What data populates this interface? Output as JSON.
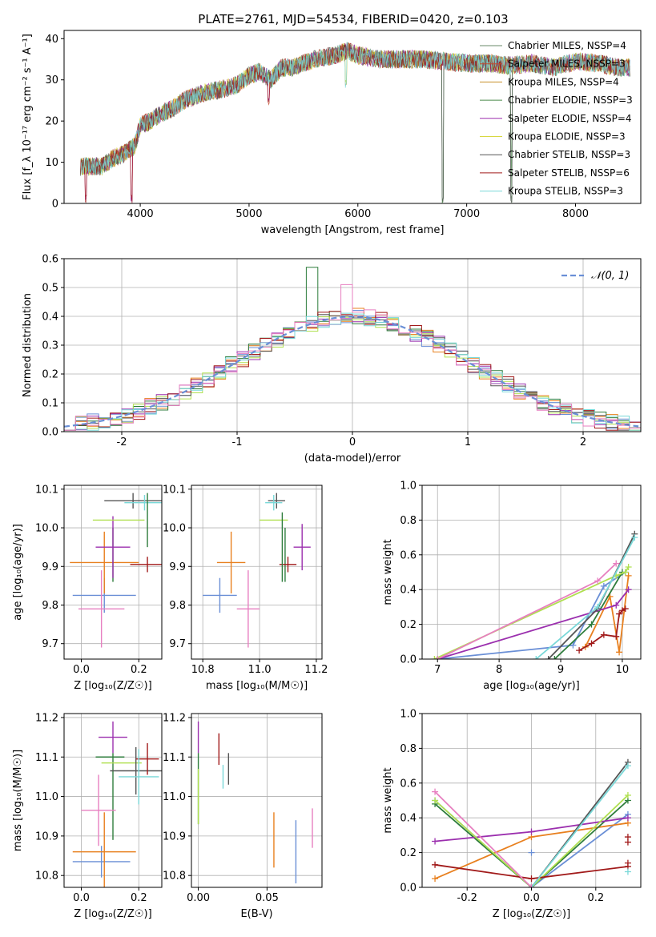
{
  "figure_title": "PLATE=2761, MJD=54534, FIBERID=0420, z=0.103",
  "series_colors": [
    "#6a8fd6",
    "#e8801f",
    "#2e7d3c",
    "#9b2fae",
    "#b0e050",
    "#555555",
    "#a11a1a",
    "#79d8d8",
    "#e77fc0"
  ],
  "chart_data": [
    {
      "type": "line",
      "id": "spectrum",
      "title": "",
      "xlabel": "wavelength [Angstrom, rest frame]",
      "ylabel": "Flux [f_λ 10⁻¹⁷ erg cm⁻² s⁻¹ A⁻¹]",
      "xlim": [
        3300,
        8600
      ],
      "ylim": [
        0,
        42
      ],
      "xticks": [
        4000,
        5000,
        6000,
        7000,
        8000
      ],
      "yticks": [
        0,
        10,
        20,
        30,
        40
      ],
      "grid": false,
      "legend": "upper-right",
      "series": [
        {
          "name": "Chabrier MILES, N_SSP=4",
          "color": "#6a8a6a"
        },
        {
          "name": "Salpeter MILES, N_SSP=3",
          "color": "#c24a2a"
        },
        {
          "name": "Kroupa MILES, N_SSP=4",
          "color": "#c8902a"
        },
        {
          "name": "Chabrier ELODIE, N_SSP=3",
          "color": "#4a8a4a"
        },
        {
          "name": "Salpeter ELODIE, N_SSP=4",
          "color": "#9b2fae"
        },
        {
          "name": "Kroupa ELODIE, N_SSP=3",
          "color": "#d8d840"
        },
        {
          "name": "Chabrier STELIB, N_SSP=3",
          "color": "#555555"
        },
        {
          "name": "Salpeter STELIB, N_SSP=6",
          "color": "#a11a1a"
        },
        {
          "name": "Kroupa STELIB, N_SSP=3",
          "color": "#79d8d8"
        }
      ],
      "continuum": {
        "x": [
          3450,
          3550,
          3650,
          3750,
          3850,
          3950,
          4000,
          4100,
          4200,
          4300,
          4400,
          4500,
          4600,
          4700,
          4800,
          4900,
          5000,
          5100,
          5200,
          5300,
          5400,
          5500,
          5600,
          5700,
          5800,
          5900,
          6000,
          6200,
          6400,
          6600,
          6800,
          7000,
          7200,
          7400,
          7600,
          7800,
          8000,
          8200,
          8400,
          8500
        ],
        "y": [
          9,
          9,
          9,
          11,
          12,
          14,
          19,
          20,
          22,
          23,
          25,
          26,
          27,
          27.5,
          28,
          29,
          31,
          32,
          30,
          33,
          33,
          34,
          35,
          35.5,
          36,
          37,
          36,
          35,
          35,
          35,
          34.5,
          34,
          34,
          33.5,
          34,
          33,
          34.5,
          34,
          33,
          33
        ]
      },
      "dips": [
        {
          "x": 3500,
          "y_min": 0
        },
        {
          "x": 3920,
          "y_min": 0
        },
        {
          "x": 5180,
          "y_min": 24
        },
        {
          "x": 5890,
          "y_min": 28
        },
        {
          "x": 6780,
          "y_min": 0
        },
        {
          "x": 7410,
          "y_min": 0
        }
      ]
    },
    {
      "type": "area",
      "id": "residuals",
      "title": "",
      "xlabel": "(data-model)/error",
      "ylabel": "Normed distribution",
      "xlim": [
        -2.5,
        2.5
      ],
      "ylim": [
        0,
        0.6
      ],
      "xticks": [
        -2,
        -1,
        0,
        1,
        2
      ],
      "yticks": [
        0.0,
        0.1,
        0.2,
        0.3,
        0.4,
        0.5,
        0.6
      ],
      "grid": true,
      "legend": "upper-right",
      "gaussian_label": "𝒩(0, 1)",
      "gaussian_color": "#6a8fd6",
      "bin_width": 0.1
    },
    {
      "type": "scatter",
      "id": "z-age",
      "xlabel": "Z [log₁₀(Z/Z☉)]",
      "ylabel": "age  [log₁₀(age/yr)]",
      "xlim": [
        -0.06,
        0.28
      ],
      "ylim": [
        9.66,
        10.11
      ],
      "xticks": [
        0.0,
        0.2
      ],
      "yticks": [
        9.7,
        9.8,
        9.9,
        10.0,
        10.1
      ],
      "grid": true,
      "points": [
        {
          "x": 0.08,
          "y": 9.825,
          "xerr": 0.11,
          "yerr": 0.045,
          "color": "#6a8fd6"
        },
        {
          "x": 0.08,
          "y": 9.91,
          "xerr": 0.12,
          "yerr": 0.08,
          "color": "#e8801f"
        },
        {
          "x": 0.11,
          "y": 9.93,
          "xerr": 0.0,
          "yerr": 0.07,
          "color": "#2e7d3c"
        },
        {
          "x": 0.11,
          "y": 9.95,
          "xerr": 0.06,
          "yerr": 0.08,
          "color": "#9b2fae"
        },
        {
          "x": 0.13,
          "y": 10.02,
          "xerr": 0.09,
          "yerr": 0.0,
          "color": "#b0e050"
        },
        {
          "x": 0.18,
          "y": 10.07,
          "xerr": 0.1,
          "yerr": 0.02,
          "color": "#555555"
        },
        {
          "x": 0.23,
          "y": 9.905,
          "xerr": 0.06,
          "yerr": 0.02,
          "color": "#a11a1a"
        },
        {
          "x": 0.22,
          "y": 10.065,
          "xerr": 0.07,
          "yerr": 0.02,
          "color": "#79d8d8"
        },
        {
          "x": 0.07,
          "y": 9.79,
          "xerr": 0.08,
          "yerr": 0.1,
          "color": "#e77fc0"
        },
        {
          "x": 0.23,
          "y": 10.02,
          "xerr": 0.0,
          "yerr": 0.07,
          "color": "#2e7d3c"
        }
      ]
    },
    {
      "type": "scatter",
      "id": "mass-age",
      "xlabel": "mass [log₁₀(M/M☉)]",
      "ylabel": "",
      "xlim": [
        10.76,
        11.22
      ],
      "ylim": [
        9.66,
        10.11
      ],
      "xticks": [
        10.8,
        11.0,
        11.2
      ],
      "yticks": [
        9.7,
        9.8,
        9.9,
        10.0,
        10.1
      ],
      "grid": true,
      "points": [
        {
          "x": 10.86,
          "y": 9.825,
          "xerr": 0.06,
          "yerr": 0.045,
          "color": "#6a8fd6"
        },
        {
          "x": 10.9,
          "y": 9.91,
          "xerr": 0.05,
          "yerr": 0.08,
          "color": "#e8801f"
        },
        {
          "x": 11.09,
          "y": 9.93,
          "xerr": 0.0,
          "yerr": 0.07,
          "color": "#2e7d3c"
        },
        {
          "x": 11.15,
          "y": 9.95,
          "xerr": 0.03,
          "yerr": 0.06,
          "color": "#9b2fae"
        },
        {
          "x": 11.05,
          "y": 10.02,
          "xerr": 0.05,
          "yerr": 0.0,
          "color": "#b0e050"
        },
        {
          "x": 11.06,
          "y": 10.07,
          "xerr": 0.03,
          "yerr": 0.02,
          "color": "#555555"
        },
        {
          "x": 11.1,
          "y": 9.905,
          "xerr": 0.03,
          "yerr": 0.02,
          "color": "#a11a1a"
        },
        {
          "x": 11.05,
          "y": 10.065,
          "xerr": 0.03,
          "yerr": 0.02,
          "color": "#79d8d8"
        },
        {
          "x": 10.96,
          "y": 9.79,
          "xerr": 0.04,
          "yerr": 0.1,
          "color": "#e77fc0"
        },
        {
          "x": 11.08,
          "y": 9.95,
          "xerr": 0.0,
          "yerr": 0.09,
          "color": "#2e7d3c"
        }
      ]
    },
    {
      "type": "line",
      "id": "age-weight",
      "xlabel": "age  [log₁₀(age/yr)]",
      "ylabel": "mass weight",
      "xlim": [
        6.75,
        10.3
      ],
      "ylim": [
        0,
        1
      ],
      "xticks": [
        7,
        8,
        9,
        10
      ],
      "yticks": [
        0.0,
        0.2,
        0.4,
        0.6,
        0.8,
        1.0
      ],
      "grid": true,
      "series": [
        {
          "color": "#6a8fd6",
          "x": [
            7.0,
            9.2,
            9.7,
            10.05
          ],
          "y": [
            0.0,
            0.08,
            0.42,
            0.5
          ]
        },
        {
          "color": "#e8801f",
          "x": [
            9.4,
            9.8,
            9.95,
            10.1
          ],
          "y": [
            0.07,
            0.36,
            0.04,
            0.48
          ]
        },
        {
          "color": "#2e7d3c",
          "x": [
            8.9,
            9.5,
            10.0
          ],
          "y": [
            0.0,
            0.2,
            0.5
          ]
        },
        {
          "color": "#9b2fae",
          "x": [
            7.0,
            9.9,
            10.1
          ],
          "y": [
            0.0,
            0.31,
            0.4
          ]
        },
        {
          "color": "#b0e050",
          "x": [
            6.95,
            9.9,
            10.05,
            10.1
          ],
          "y": [
            0.0,
            0.48,
            0.5,
            0.53
          ]
        },
        {
          "color": "#555555",
          "x": [
            8.8,
            9.6,
            10.2
          ],
          "y": [
            0.0,
            0.29,
            0.72
          ]
        },
        {
          "color": "#a11a1a",
          "x": [
            9.3,
            9.5,
            9.7,
            9.9,
            9.95,
            10.0,
            10.05
          ],
          "y": [
            0.05,
            0.09,
            0.14,
            0.13,
            0.26,
            0.28,
            0.29
          ]
        },
        {
          "color": "#79d8d8",
          "x": [
            8.6,
            9.6,
            10.2
          ],
          "y": [
            0.0,
            0.3,
            0.7
          ]
        },
        {
          "color": "#e77fc0",
          "x": [
            7.0,
            9.6,
            9.9
          ],
          "y": [
            0.0,
            0.45,
            0.55
          ]
        }
      ]
    },
    {
      "type": "scatter",
      "id": "z-mass",
      "xlabel": "Z [log₁₀(Z/Z☉)]",
      "ylabel": "mass [log₁₀(M/M☉)]",
      "xlim": [
        -0.06,
        0.28
      ],
      "ylim": [
        10.77,
        11.21
      ],
      "xticks": [
        0.0,
        0.2
      ],
      "yticks": [
        10.8,
        10.9,
        11.0,
        11.1,
        11.2
      ],
      "grid": true,
      "points": [
        {
          "x": 0.07,
          "y": 10.835,
          "xerr": 0.1,
          "yerr": 0.04,
          "color": "#6a8fd6"
        },
        {
          "x": 0.08,
          "y": 10.86,
          "xerr": 0.11,
          "yerr": 0.1,
          "color": "#e8801f"
        },
        {
          "x": 0.11,
          "y": 11.0,
          "xerr": 0.0,
          "yerr": 0.11,
          "color": "#2e7d3c"
        },
        {
          "x": 0.11,
          "y": 11.15,
          "xerr": 0.05,
          "yerr": 0.04,
          "color": "#9b2fae"
        },
        {
          "x": 0.14,
          "y": 11.085,
          "xerr": 0.07,
          "yerr": 0.0,
          "color": "#b0e050"
        },
        {
          "x": 0.19,
          "y": 11.065,
          "xerr": 0.09,
          "yerr": 0.06,
          "color": "#555555"
        },
        {
          "x": 0.23,
          "y": 11.095,
          "xerr": 0.04,
          "yerr": 0.04,
          "color": "#a11a1a"
        },
        {
          "x": 0.2,
          "y": 11.05,
          "xerr": 0.07,
          "yerr": 0.07,
          "color": "#79d8d8"
        },
        {
          "x": 0.06,
          "y": 10.965,
          "xerr": 0.06,
          "yerr": 0.09,
          "color": "#e77fc0"
        },
        {
          "x": 0.1,
          "y": 11.1,
          "xerr": 0.05,
          "yerr": 0.0,
          "color": "#2e7d3c"
        }
      ]
    },
    {
      "type": "scatter",
      "id": "ebv-mass",
      "xlabel": "E(B-V)",
      "ylabel": "",
      "xlim": [
        -0.005,
        0.09
      ],
      "ylim": [
        10.77,
        11.21
      ],
      "xticks": [
        0.0,
        0.05
      ],
      "yticks": [
        10.8,
        10.9,
        11.0,
        11.1,
        11.2
      ],
      "grid": true,
      "points": [
        {
          "x": 0.0,
          "y": 11.15,
          "xerr": 0.0,
          "yerr": 0.04,
          "color": "#9b2fae"
        },
        {
          "x": 0.0,
          "y": 11.02,
          "xerr": 0.0,
          "yerr": 0.09,
          "color": "#2e7d3c"
        },
        {
          "x": 0.0,
          "y": 11.0,
          "xerr": 0.0,
          "yerr": 0.07,
          "color": "#b0e050"
        },
        {
          "x": 0.015,
          "y": 11.12,
          "xerr": 0.0,
          "yerr": 0.04,
          "color": "#a11a1a"
        },
        {
          "x": 0.018,
          "y": 11.05,
          "xerr": 0.0,
          "yerr": 0.03,
          "color": "#79d8d8"
        },
        {
          "x": 0.022,
          "y": 11.07,
          "xerr": 0.0,
          "yerr": 0.04,
          "color": "#555555"
        },
        {
          "x": 0.055,
          "y": 10.89,
          "xerr": 0.0,
          "yerr": 0.07,
          "color": "#e8801f"
        },
        {
          "x": 0.071,
          "y": 10.86,
          "xerr": 0.0,
          "yerr": 0.08,
          "color": "#6a8fd6"
        },
        {
          "x": 0.083,
          "y": 10.92,
          "xerr": 0.0,
          "yerr": 0.05,
          "color": "#e77fc0"
        }
      ]
    },
    {
      "type": "line",
      "id": "z-weight",
      "xlabel": "Z [log₁₀(Z/Z☉)]",
      "ylabel": "mass weight",
      "xlim": [
        -0.34,
        0.34
      ],
      "ylim": [
        0,
        1
      ],
      "xticks": [
        -0.2,
        0.0,
        0.2
      ],
      "yticks": [
        0.0,
        0.2,
        0.4,
        0.6,
        0.8,
        1.0
      ],
      "grid": true,
      "series": [
        {
          "color": "#6a8fd6",
          "x": [
            -0.3,
            0.0,
            0.3
          ],
          "y": [
            0.5,
            0.0,
            0.42
          ]
        },
        {
          "color": "#e8801f",
          "x": [
            -0.3,
            0.0,
            0.3
          ],
          "y": [
            0.05,
            0.29,
            0.37
          ]
        },
        {
          "color": "#2e7d3c",
          "x": [
            -0.3,
            0.0,
            0.3
          ],
          "y": [
            0.48,
            0.0,
            0.5
          ]
        },
        {
          "color": "#9b2fae",
          "x": [
            -0.3,
            0.0,
            0.3
          ],
          "y": [
            0.265,
            0.32,
            0.4
          ]
        },
        {
          "color": "#b0e050",
          "x": [
            -0.3,
            0.0,
            0.3
          ],
          "y": [
            0.5,
            0.0,
            0.53
          ]
        },
        {
          "color": "#555555",
          "x": [
            0.0,
            0.3
          ],
          "y": [
            0.0,
            0.72
          ]
        },
        {
          "color": "#a11a1a",
          "x": [
            -0.3,
            0.0,
            0.3
          ],
          "y": [
            0.13,
            0.05,
            0.12
          ]
        },
        {
          "color": "#79d8d8",
          "x": [
            0.0,
            0.3
          ],
          "y": [
            0.0,
            0.7
          ]
        },
        {
          "color": "#e77fc0",
          "x": [
            -0.3,
            0.0
          ],
          "y": [
            0.55,
            0.0
          ]
        }
      ],
      "extra_ticks": [
        {
          "color": "#a11a1a",
          "x": 0.3,
          "y": [
            0.29,
            0.26,
            0.14
          ]
        },
        {
          "color": "#79d8d8",
          "x": 0.3,
          "y": [
            0.09
          ]
        },
        {
          "color": "#6a8fd6",
          "x": 0.0,
          "y": [
            0.2
          ]
        }
      ]
    }
  ]
}
